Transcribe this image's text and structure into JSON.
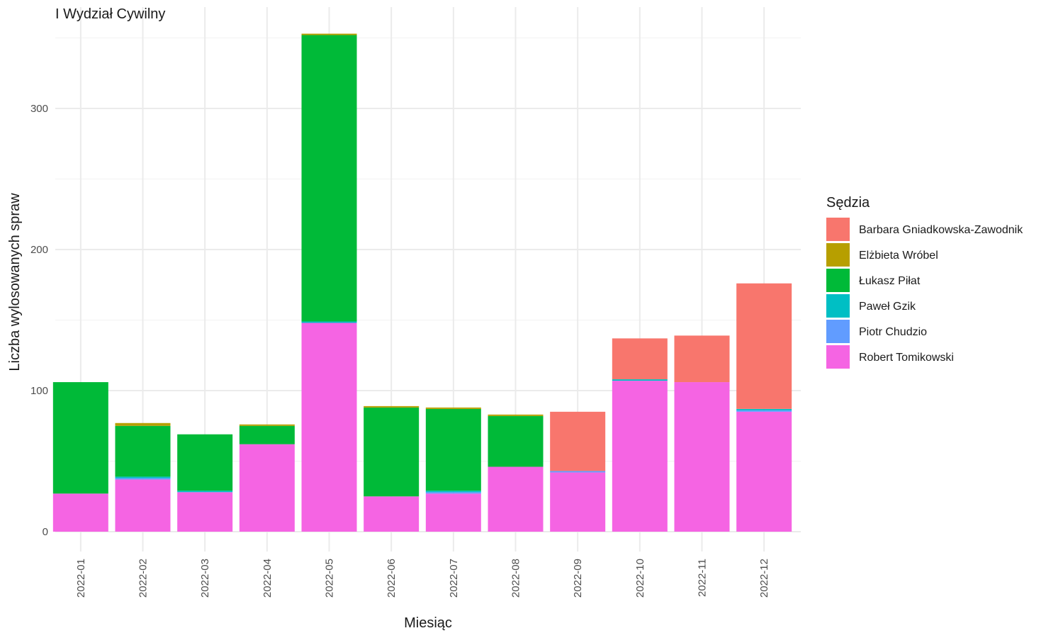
{
  "chart_data": {
    "type": "bar",
    "stacked": true,
    "title": "I Wydział Cywilny",
    "xlabel": "Miesiąc",
    "ylabel": "Liczba wylosowanych spraw",
    "ylim": [
      -14,
      355
    ],
    "yticks": [
      0,
      100,
      200,
      300
    ],
    "grid": true,
    "legend": {
      "title": "Sędzia",
      "position": "right"
    },
    "categories": [
      "2022-01",
      "2022-02",
      "2022-03",
      "2022-04",
      "2022-05",
      "2022-06",
      "2022-07",
      "2022-08",
      "2022-09",
      "2022-10",
      "2022-11",
      "2022-12"
    ],
    "series": [
      {
        "name": "Robert Tomikowski",
        "color": "#F564E3",
        "values": [
          27,
          37,
          28,
          62,
          148,
          25,
          27,
          46,
          42,
          107,
          106,
          85
        ]
      },
      {
        "name": "Piotr Chudzio",
        "color": "#619CFF",
        "values": [
          0,
          1,
          0,
          0,
          0,
          0,
          1,
          0,
          1,
          0,
          0,
          1
        ]
      },
      {
        "name": "Paweł Gzik",
        "color": "#00BFC4",
        "values": [
          0,
          1,
          1,
          0,
          1,
          0,
          1,
          0,
          0,
          1,
          0,
          1
        ]
      },
      {
        "name": "Łukasz Piłat",
        "color": "#00BA38",
        "values": [
          79,
          36,
          40,
          13,
          203,
          63,
          58,
          36,
          0,
          0,
          0,
          0
        ]
      },
      {
        "name": "Elżbieta Wróbel",
        "color": "#B79F00",
        "values": [
          0,
          2,
          0,
          1,
          1,
          1,
          1,
          1,
          0,
          0,
          0,
          0
        ]
      },
      {
        "name": "Barbara Gniadkowska-Zawodnik",
        "color": "#F8766D",
        "values": [
          0,
          0,
          0,
          0,
          0,
          0,
          0,
          0,
          42,
          29,
          33,
          89
        ]
      }
    ]
  },
  "legend_order": [
    "Barbara Gniadkowska-Zawodnik",
    "Elżbieta Wróbel",
    "Łukasz Piłat",
    "Paweł Gzik",
    "Piotr Chudzio",
    "Robert Tomikowski"
  ]
}
